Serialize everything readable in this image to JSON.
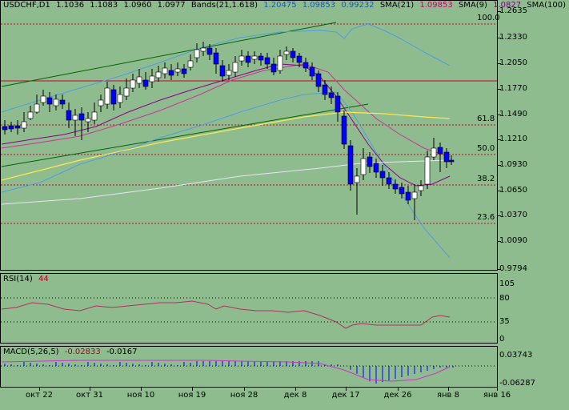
{
  "symbol_label": "USDCHF,D1",
  "ohlc": {
    "open": "1.1036",
    "high": "1.1083",
    "low": "1.0960",
    "close": "1.0977"
  },
  "bands": {
    "label": "Bands(21,1.618)",
    "upper": "1.20475",
    "middle": "1.09853",
    "lower": "0.99232"
  },
  "sma21": {
    "label": "SMA(21)",
    "value": "1.09853"
  },
  "sma9": {
    "label": "SMA(9)",
    "value": "1.0827"
  },
  "sma100": {
    "label": "SMA(100)"
  },
  "rsi": {
    "label": "RSI(14)",
    "value": "44",
    "scale": [
      "105",
      "80",
      "35",
      "0"
    ]
  },
  "macd": {
    "label": "MACD(5,26,5)",
    "value1": "-0.02833",
    "value2": "-0.0167",
    "scale": [
      "0.03743",
      "-0.06287"
    ]
  },
  "price_scale": [
    "1.2635",
    "1.2330",
    "1.2050",
    "1.1770",
    "1.1490",
    "1.1210",
    "1.0930",
    "1.0650",
    "1.0370",
    "1.0090",
    "0.9794"
  ],
  "fibo_levels": [
    "100.0",
    "61.8",
    "50.0",
    "38.2",
    "23.6"
  ],
  "date_labels": [
    "окт 22",
    "окт 31",
    "ноя 10",
    "ноя 19",
    "ноя 28",
    "дек 8",
    "дек 17",
    "дек 26",
    "янв 8",
    "янв 16"
  ],
  "colors": {
    "background": "#8fbc8f",
    "bull": "#ffffff",
    "bear": "#0000ff",
    "bands": "#4f9fdf",
    "sma21": "#cc3399",
    "sma9": "#8b008b",
    "sma100": "#ffe850",
    "fibo": "#cc0033",
    "channel": "#006400",
    "rsi_line": "#b03060",
    "macd": "#0000ff"
  }
}
